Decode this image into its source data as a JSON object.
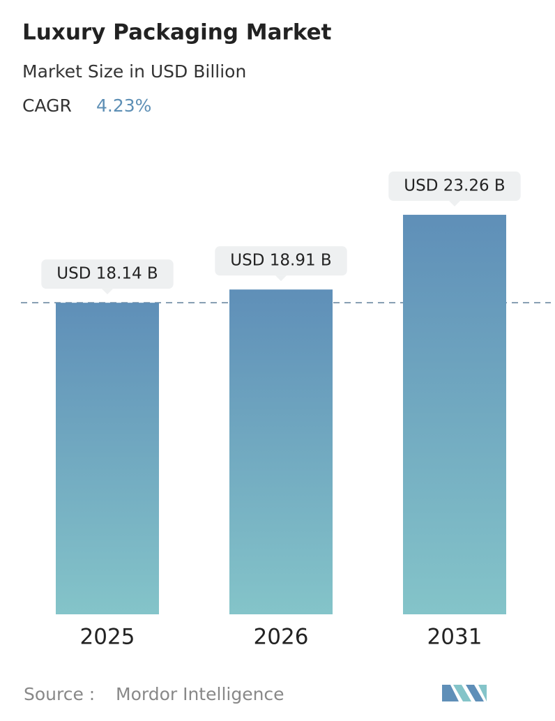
{
  "chart_data": {
    "type": "bar",
    "title": "Luxury Packaging Market",
    "subtitle": "Market Size in USD Billion",
    "cagr_label": "CAGR",
    "cagr_value": "4.23%",
    "categories": [
      "2025",
      "2026",
      "2031"
    ],
    "values": [
      18.14,
      18.91,
      23.26
    ],
    "value_labels": [
      "USD 18.14 B",
      "USD 18.91 B",
      "USD 23.26 B"
    ],
    "color_top": "#5f8fb8",
    "color_bottom": "#84c4c9",
    "ylim": [
      0,
      30
    ],
    "source_label": "Source :",
    "source": "Mordor Intelligence"
  }
}
